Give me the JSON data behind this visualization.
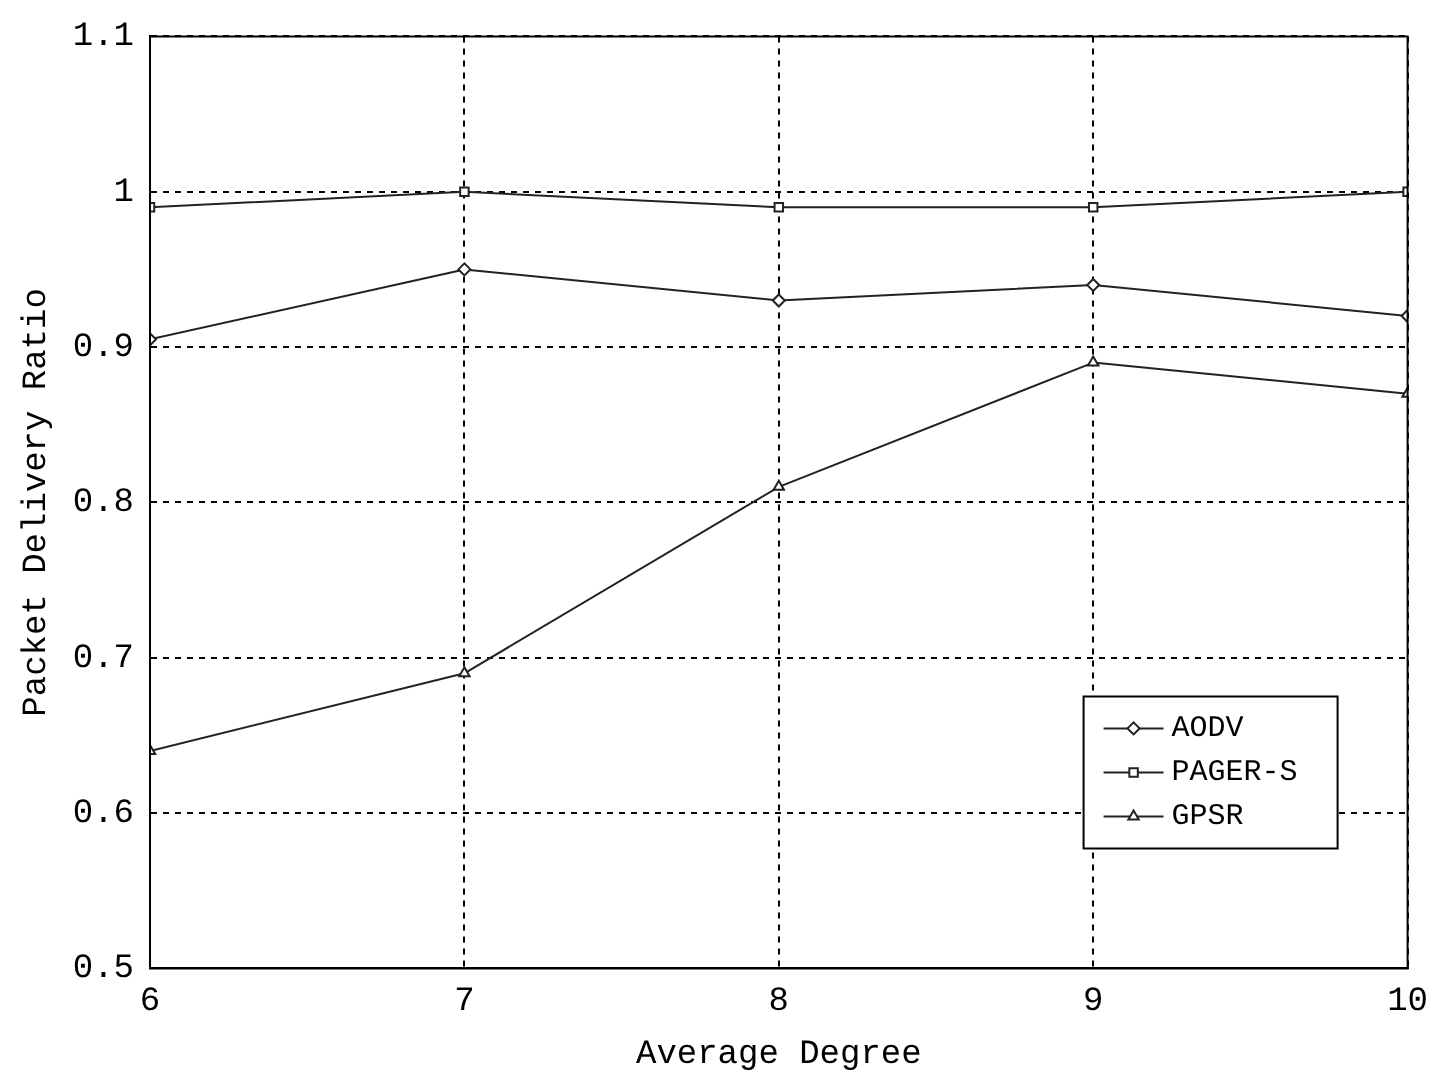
{
  "chart_data": {
    "type": "line",
    "xlabel": "Average Degree",
    "ylabel": "Packet Delivery Ratio",
    "x": [
      6,
      7,
      8,
      9,
      10
    ],
    "xlim": [
      6,
      10
    ],
    "xticks": [
      6,
      7,
      8,
      9,
      10
    ],
    "ylim": [
      0.5,
      1.1
    ],
    "yticks": [
      {
        "value": 0.5,
        "label": "0.5"
      },
      {
        "value": 0.6,
        "label": "0.6"
      },
      {
        "value": 0.7,
        "label": "0.7"
      },
      {
        "value": 0.8,
        "label": "0.8"
      },
      {
        "value": 0.9,
        "label": "0.9"
      },
      {
        "value": 1,
        "label": "1"
      },
      {
        "value": 1.1,
        "label": "1.1"
      }
    ],
    "series": [
      {
        "name": "AODV",
        "color": "#222222",
        "marker": "diamond",
        "values": [
          0.905,
          0.95,
          0.93,
          0.94,
          0.92
        ]
      },
      {
        "name": "PAGER-S",
        "color": "#222222",
        "marker": "square",
        "values": [
          0.99,
          1.0,
          0.99,
          0.99,
          1.0
        ]
      },
      {
        "name": "GPSR",
        "color": "#222222",
        "marker": "triangle",
        "values": [
          0.64,
          0.69,
          0.81,
          0.89,
          0.87
        ]
      }
    ],
    "grid": true,
    "legend": "bottom right",
    "line_style": "solid"
  }
}
